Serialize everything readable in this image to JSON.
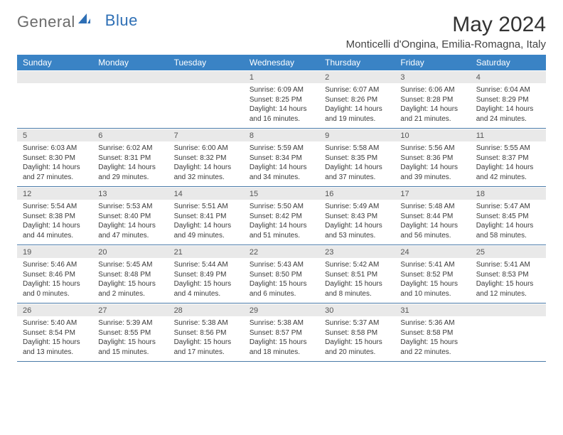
{
  "logo": {
    "part1": "General",
    "part2": "Blue"
  },
  "title": "May 2024",
  "location": "Monticelli d'Ongina, Emilia-Romagna, Italy",
  "colors": {
    "header_bg": "#3a83c5",
    "header_text": "#ffffff",
    "daynum_bg": "#e9e9e9",
    "daynum_text": "#555555",
    "content_text": "#3a3a3a",
    "rule": "#4a7aa8",
    "logo_gray": "#6b6b6b",
    "logo_blue": "#2e6fb5"
  },
  "dow": [
    "Sunday",
    "Monday",
    "Tuesday",
    "Wednesday",
    "Thursday",
    "Friday",
    "Saturday"
  ],
  "weeks": [
    [
      null,
      null,
      null,
      {
        "n": "1",
        "sr": "6:09 AM",
        "ss": "8:25 PM",
        "dlh": 14,
        "dlm": 16
      },
      {
        "n": "2",
        "sr": "6:07 AM",
        "ss": "8:26 PM",
        "dlh": 14,
        "dlm": 19
      },
      {
        "n": "3",
        "sr": "6:06 AM",
        "ss": "8:28 PM",
        "dlh": 14,
        "dlm": 21
      },
      {
        "n": "4",
        "sr": "6:04 AM",
        "ss": "8:29 PM",
        "dlh": 14,
        "dlm": 24
      }
    ],
    [
      {
        "n": "5",
        "sr": "6:03 AM",
        "ss": "8:30 PM",
        "dlh": 14,
        "dlm": 27
      },
      {
        "n": "6",
        "sr": "6:02 AM",
        "ss": "8:31 PM",
        "dlh": 14,
        "dlm": 29
      },
      {
        "n": "7",
        "sr": "6:00 AM",
        "ss": "8:32 PM",
        "dlh": 14,
        "dlm": 32
      },
      {
        "n": "8",
        "sr": "5:59 AM",
        "ss": "8:34 PM",
        "dlh": 14,
        "dlm": 34
      },
      {
        "n": "9",
        "sr": "5:58 AM",
        "ss": "8:35 PM",
        "dlh": 14,
        "dlm": 37
      },
      {
        "n": "10",
        "sr": "5:56 AM",
        "ss": "8:36 PM",
        "dlh": 14,
        "dlm": 39
      },
      {
        "n": "11",
        "sr": "5:55 AM",
        "ss": "8:37 PM",
        "dlh": 14,
        "dlm": 42
      }
    ],
    [
      {
        "n": "12",
        "sr": "5:54 AM",
        "ss": "8:38 PM",
        "dlh": 14,
        "dlm": 44
      },
      {
        "n": "13",
        "sr": "5:53 AM",
        "ss": "8:40 PM",
        "dlh": 14,
        "dlm": 47
      },
      {
        "n": "14",
        "sr": "5:51 AM",
        "ss": "8:41 PM",
        "dlh": 14,
        "dlm": 49
      },
      {
        "n": "15",
        "sr": "5:50 AM",
        "ss": "8:42 PM",
        "dlh": 14,
        "dlm": 51
      },
      {
        "n": "16",
        "sr": "5:49 AM",
        "ss": "8:43 PM",
        "dlh": 14,
        "dlm": 53
      },
      {
        "n": "17",
        "sr": "5:48 AM",
        "ss": "8:44 PM",
        "dlh": 14,
        "dlm": 56
      },
      {
        "n": "18",
        "sr": "5:47 AM",
        "ss": "8:45 PM",
        "dlh": 14,
        "dlm": 58
      }
    ],
    [
      {
        "n": "19",
        "sr": "5:46 AM",
        "ss": "8:46 PM",
        "dlh": 15,
        "dlm": 0
      },
      {
        "n": "20",
        "sr": "5:45 AM",
        "ss": "8:48 PM",
        "dlh": 15,
        "dlm": 2
      },
      {
        "n": "21",
        "sr": "5:44 AM",
        "ss": "8:49 PM",
        "dlh": 15,
        "dlm": 4
      },
      {
        "n": "22",
        "sr": "5:43 AM",
        "ss": "8:50 PM",
        "dlh": 15,
        "dlm": 6
      },
      {
        "n": "23",
        "sr": "5:42 AM",
        "ss": "8:51 PM",
        "dlh": 15,
        "dlm": 8
      },
      {
        "n": "24",
        "sr": "5:41 AM",
        "ss": "8:52 PM",
        "dlh": 15,
        "dlm": 10
      },
      {
        "n": "25",
        "sr": "5:41 AM",
        "ss": "8:53 PM",
        "dlh": 15,
        "dlm": 12
      }
    ],
    [
      {
        "n": "26",
        "sr": "5:40 AM",
        "ss": "8:54 PM",
        "dlh": 15,
        "dlm": 13
      },
      {
        "n": "27",
        "sr": "5:39 AM",
        "ss": "8:55 PM",
        "dlh": 15,
        "dlm": 15
      },
      {
        "n": "28",
        "sr": "5:38 AM",
        "ss": "8:56 PM",
        "dlh": 15,
        "dlm": 17
      },
      {
        "n": "29",
        "sr": "5:38 AM",
        "ss": "8:57 PM",
        "dlh": 15,
        "dlm": 18
      },
      {
        "n": "30",
        "sr": "5:37 AM",
        "ss": "8:58 PM",
        "dlh": 15,
        "dlm": 20
      },
      {
        "n": "31",
        "sr": "5:36 AM",
        "ss": "8:58 PM",
        "dlh": 15,
        "dlm": 22
      },
      null
    ]
  ],
  "labels": {
    "sunrise": "Sunrise:",
    "sunset": "Sunset:",
    "daylight": "Daylight:",
    "hours": "hours",
    "and": "and",
    "minutes": "minutes."
  }
}
